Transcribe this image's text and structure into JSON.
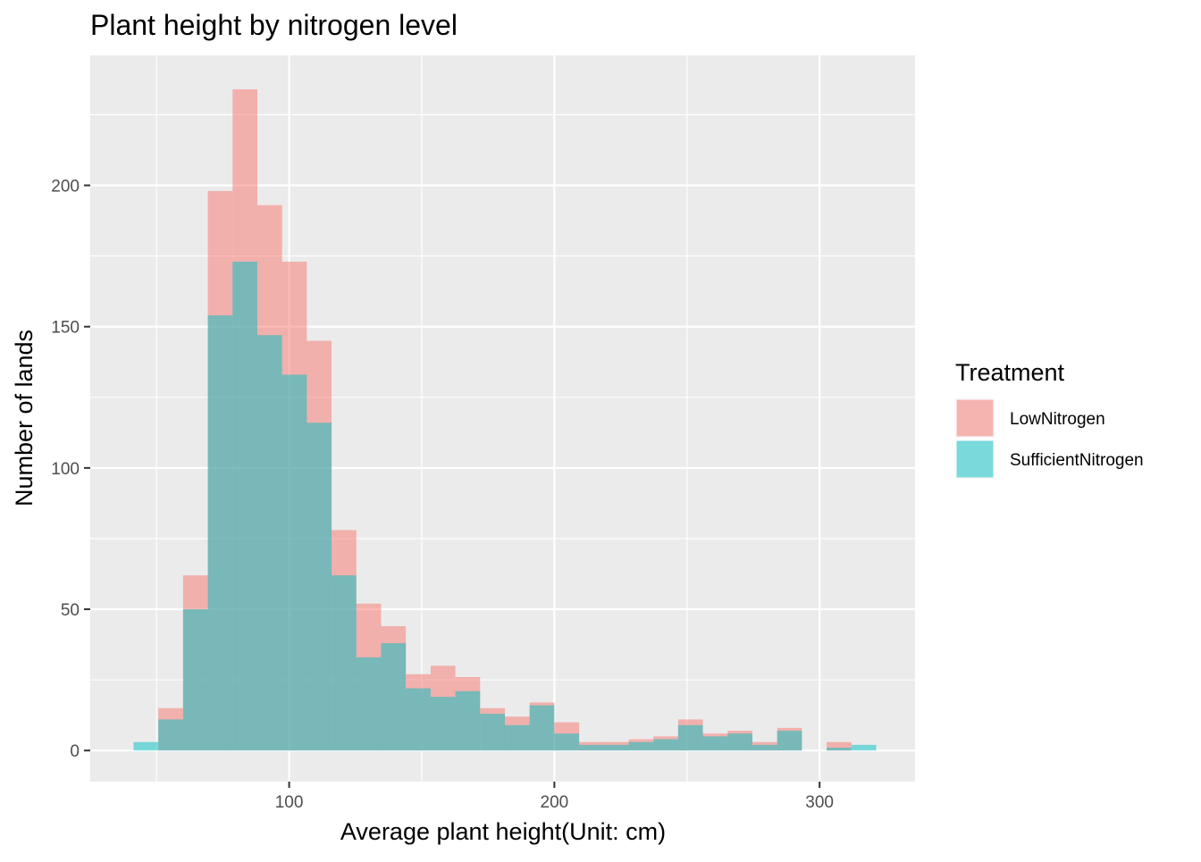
{
  "chart_data": {
    "type": "bar",
    "title": "Plant height by nitrogen level",
    "xlabel": "Average plant height(Unit: cm)",
    "ylabel": "Number of lands",
    "xlim": [
      25,
      336
    ],
    "ylim": [
      -11,
      246
    ],
    "xticks": [
      100,
      200,
      300
    ],
    "yticks": [
      0,
      50,
      100,
      150,
      200
    ],
    "x_minor_grid": [
      50,
      150,
      250
    ],
    "y_minor_grid": [
      25,
      75,
      125,
      175,
      225
    ],
    "grid": true,
    "bin_width": 9.33,
    "bin_centers": [
      46,
      55.33,
      64.67,
      74,
      83.33,
      92.67,
      102,
      111.33,
      120.67,
      130,
      139.33,
      148.67,
      158,
      167.33,
      176.67,
      186,
      195.33,
      204.67,
      214,
      223.33,
      232.67,
      242,
      251.33,
      260.67,
      270,
      279.33,
      288.67,
      298,
      307.33,
      316.67
    ],
    "stacked": false,
    "legend": {
      "title": "Treatment",
      "position": "right"
    },
    "series": [
      {
        "name": "LowNitrogen",
        "color": "#F8766D",
        "values": [
          0,
          15,
          62,
          198,
          234,
          193,
          173,
          145,
          78,
          52,
          44,
          27,
          30,
          26,
          15,
          12,
          17,
          10,
          3,
          3,
          4,
          5,
          11,
          6,
          7,
          3,
          8,
          0,
          3,
          0
        ]
      },
      {
        "name": "SufficientNitrogen",
        "color": "#00BFC4",
        "values": [
          3,
          11,
          50,
          154,
          173,
          147,
          133,
          116,
          62,
          33,
          38,
          22,
          19,
          21,
          13,
          9,
          16,
          6,
          2,
          2,
          3,
          4,
          9,
          5,
          6,
          2,
          7,
          0,
          1,
          2
        ]
      }
    ]
  }
}
